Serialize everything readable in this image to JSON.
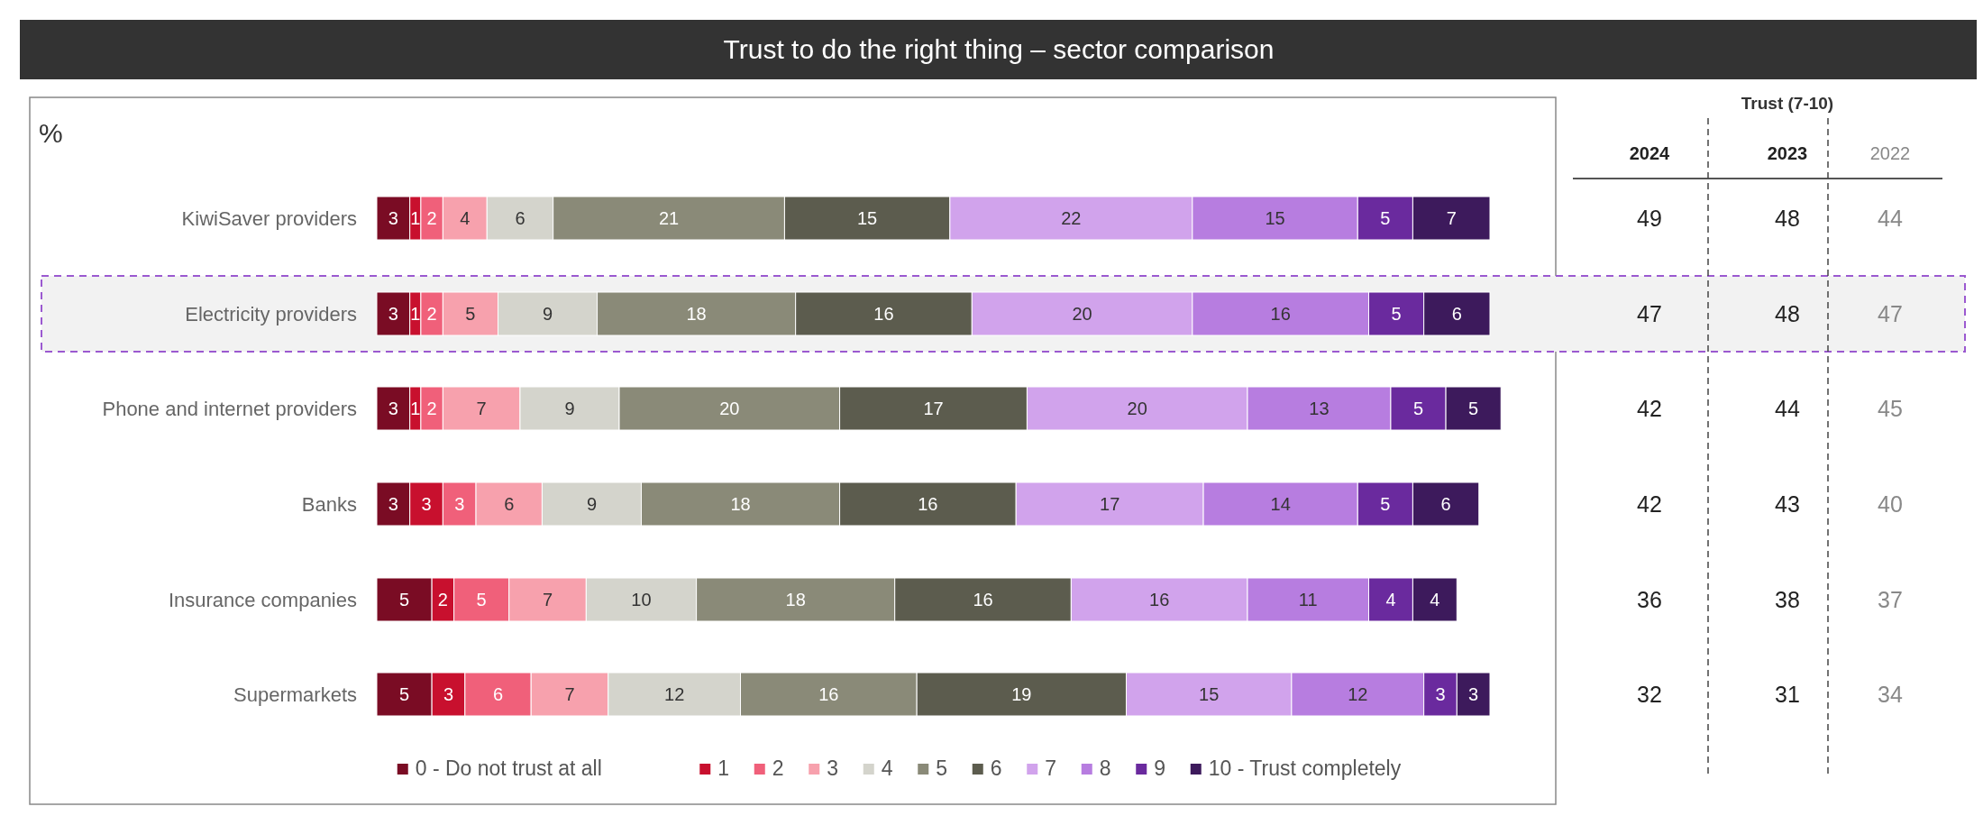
{
  "chart_data": [
    {
      "type": "bar",
      "title": "Trust to do the right thing – sector comparison",
      "ylabel": "%",
      "orientation": "horizontal",
      "stacked": true,
      "data_labels": true,
      "legend": "bottom",
      "categories": [
        "KiwiSaver providers",
        "Electricity providers",
        "Phone and internet providers",
        "Banks",
        "Insurance companies",
        "Supermarkets"
      ],
      "bands": [
        {
          "axis": "y",
          "from": "Electricity providers",
          "to": "Electricity providers",
          "color": "#9b59d0"
        }
      ],
      "series": [
        {
          "name": "0 - Do not trust at all",
          "color": "#7a0c24",
          "values": [
            3,
            3,
            3,
            3,
            5,
            5
          ]
        },
        {
          "name": "1",
          "color": "#c8102e",
          "values": [
            1,
            1,
            1,
            3,
            2,
            3
          ]
        },
        {
          "name": "2",
          "color": "#f0607a",
          "values": [
            2,
            2,
            2,
            3,
            5,
            6
          ]
        },
        {
          "name": "3",
          "color": "#f7a1ad",
          "values": [
            4,
            5,
            7,
            6,
            7,
            7
          ]
        },
        {
          "name": "4",
          "color": "#d4d4cc",
          "values": [
            6,
            9,
            9,
            9,
            10,
            12
          ]
        },
        {
          "name": "5",
          "color": "#8a8a78",
          "values": [
            21,
            18,
            20,
            18,
            18,
            16
          ]
        },
        {
          "name": "6",
          "color": "#5c5c4e",
          "values": [
            15,
            16,
            17,
            16,
            16,
            19
          ]
        },
        {
          "name": "7",
          "color": "#d1a3ec",
          "values": [
            22,
            20,
            20,
            17,
            16,
            15
          ]
        },
        {
          "name": "8",
          "color": "#b77de0",
          "values": [
            15,
            16,
            13,
            14,
            11,
            12
          ]
        },
        {
          "name": "9",
          "color": "#6a2a9e",
          "values": [
            5,
            5,
            5,
            5,
            4,
            3
          ]
        },
        {
          "name": "10 - Trust completely",
          "color": "#3d1a5c",
          "values": [
            7,
            6,
            5,
            6,
            4,
            3
          ]
        }
      ]
    },
    {
      "type": "heatmap",
      "title": "Trust (7-10)",
      "tick_labels": "x",
      "data_labels": true,
      "categories": [
        "2024",
        "2023",
        "2022"
      ],
      "colors": [
        "#222222",
        "#222222",
        "#888888"
      ],
      "y_categories": [
        null,
        null,
        null,
        null,
        null,
        null
      ],
      "cells": [
        [
          49,
          48,
          44
        ],
        [
          47,
          48,
          47
        ],
        [
          42,
          44,
          45
        ],
        [
          42,
          43,
          40
        ],
        [
          36,
          38,
          37
        ],
        [
          32,
          31,
          34
        ]
      ]
    }
  ]
}
